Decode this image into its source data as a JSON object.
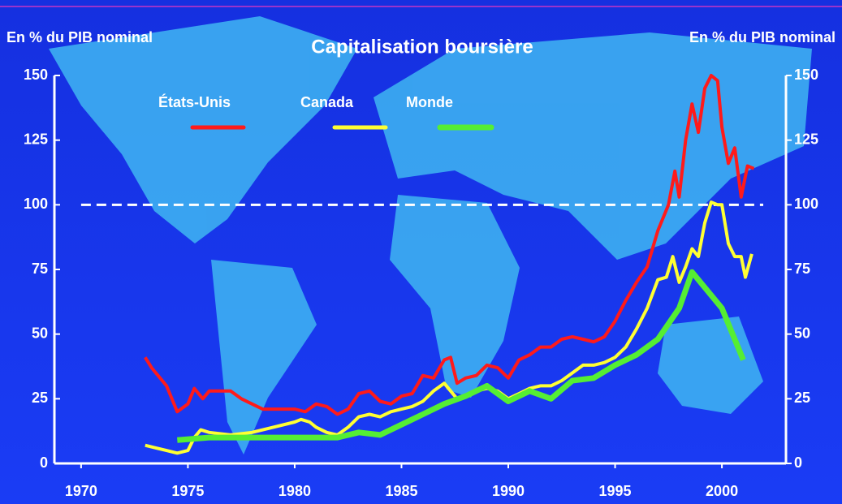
{
  "chart_data": {
    "type": "line",
    "title": "Capitalisation boursière",
    "y_label": "En % du PIB nominal",
    "y2_label": "En % du PIB nominal",
    "xlim": [
      1968.75,
      2003
    ],
    "xticks": [
      1970,
      1975,
      1980,
      1985,
      1990,
      1995,
      2000
    ],
    "ylim": [
      0,
      150
    ],
    "yticks": [
      0,
      25,
      50,
      75,
      100,
      125,
      150
    ],
    "y2lim": [
      0,
      150
    ],
    "y2ticks": [
      0,
      25,
      50,
      75,
      100,
      125,
      150
    ],
    "reference_line": 100,
    "legend": "upper-left",
    "series": [
      {
        "name": "États-Unis",
        "color": "#ff1a1a",
        "x": [
          1973,
          1973.3,
          1973.7,
          1974,
          1974.5,
          1975,
          1975.3,
          1975.7,
          1976,
          1977,
          1977.5,
          1978,
          1978.5,
          1979,
          1980,
          1980.5,
          1981,
          1981.5,
          1982,
          1982.5,
          1983,
          1983.5,
          1984,
          1984.5,
          1985,
          1985.5,
          1986,
          1986.5,
          1987,
          1987.3,
          1987.6,
          1988,
          1988.5,
          1989,
          1989.5,
          1990,
          1990.5,
          1991,
          1991.5,
          1992,
          1992.5,
          1993,
          1993.5,
          1994,
          1994.5,
          1995,
          1995.5,
          1996,
          1996.5,
          1997,
          1997.5,
          1997.8,
          1998,
          1998.3,
          1998.6,
          1998.9,
          1999.2,
          1999.5,
          1999.8,
          2000,
          2000.3,
          2000.6,
          2000.9,
          2001.2,
          2001.5
        ],
        "values": [
          41,
          37,
          33,
          30,
          20,
          23,
          29,
          25,
          28,
          28,
          25,
          23,
          21,
          21,
          21,
          20,
          23,
          22,
          19,
          21,
          27,
          28,
          24,
          23,
          26,
          27,
          34,
          33,
          40,
          41,
          31,
          33,
          34,
          38,
          37,
          33,
          40,
          42,
          45,
          45,
          48,
          49,
          48,
          47,
          49,
          55,
          63,
          70,
          76,
          90,
          100,
          113,
          103,
          125,
          139,
          128,
          145,
          150,
          148,
          130,
          116,
          122,
          103,
          115,
          114
        ]
      },
      {
        "name": "Canada",
        "color": "#ffff33",
        "x": [
          1973,
          1973.5,
          1974,
          1974.5,
          1975,
          1975.3,
          1975.6,
          1976,
          1977,
          1978,
          1979,
          1980,
          1980.3,
          1980.7,
          1981,
          1981.5,
          1982,
          1982.5,
          1983,
          1983.5,
          1984,
          1984.5,
          1985,
          1985.5,
          1986,
          1986.5,
          1987,
          1987.3,
          1987.6,
          1988,
          1988.5,
          1989,
          1989.5,
          1990,
          1990.5,
          1991,
          1991.5,
          1992,
          1992.5,
          1993,
          1993.5,
          1994,
          1994.5,
          1995,
          1995.5,
          1996,
          1996.5,
          1997,
          1997.4,
          1997.7,
          1998,
          1998.3,
          1998.6,
          1998.9,
          1999.2,
          1999.5,
          1999.8,
          2000,
          2000.3,
          2000.6,
          2000.9,
          2001.1,
          2001.4
        ],
        "values": [
          7,
          6,
          5,
          4,
          5,
          10,
          13,
          12,
          11,
          12,
          14,
          16,
          17,
          16,
          14,
          12,
          11,
          14,
          18,
          19,
          18,
          20,
          21,
          22,
          24,
          28,
          31,
          28,
          25,
          26,
          28,
          29,
          28,
          25,
          27,
          29,
          30,
          30,
          32,
          35,
          38,
          38,
          39,
          41,
          45,
          52,
          60,
          71,
          72,
          80,
          70,
          76,
          83,
          80,
          93,
          101,
          100,
          100,
          85,
          80,
          80,
          72,
          81
        ]
      },
      {
        "name": "Monde",
        "color": "#55ee33",
        "x": [
          1974.5,
          1976,
          1978,
          1980,
          1982,
          1983,
          1984,
          1985,
          1986,
          1987,
          1988,
          1989,
          1990,
          1991,
          1992,
          1993,
          1994,
          1995,
          1996,
          1997,
          1998,
          1998.6,
          2000,
          2001
        ],
        "values": [
          9,
          10,
          10,
          10,
          10,
          12,
          11,
          15,
          19,
          23,
          26,
          30,
          24,
          28,
          25,
          32,
          33,
          38,
          42,
          48,
          60,
          74,
          60,
          40
        ]
      }
    ]
  }
}
